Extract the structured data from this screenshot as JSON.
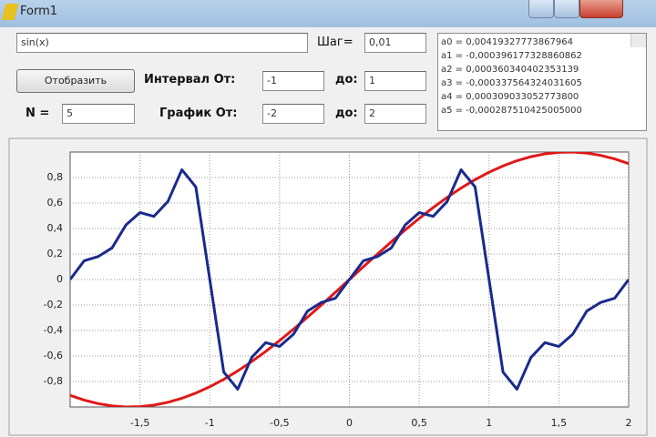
{
  "window": {
    "title": "Form1"
  },
  "form": {
    "function_input": "sin(x)",
    "step_label": "Шаг=",
    "step_input": "0,01",
    "button": "Отобразить",
    "interval_label": "Интервал От:",
    "interval_from": "-1",
    "interval_to_label": "до:",
    "interval_to": "1",
    "n_label": "N =",
    "n_input": "5",
    "graph_label": "График От:",
    "graph_from": "-2",
    "graph_to_label": "до:",
    "graph_to": "2",
    "coefficients": [
      "a0 = 0,00419327773867964",
      "a1 = -0,000396177328860862",
      "a2 = 0,000360340402353139",
      "a3 = -0,000337564324031605",
      "a4 = 0,000309033052773800",
      "a5 = -0,000287510425005000"
    ]
  },
  "chart": {
    "type": "line",
    "x": [
      -2,
      -1.9,
      -1.8,
      -1.7,
      -1.6,
      -1.5,
      -1.4,
      -1.3,
      -1.2,
      -1.1,
      -1,
      -0.9,
      -0.8,
      -0.7,
      -0.6,
      -0.5,
      -0.4,
      -0.3,
      -0.2,
      -0.1,
      0,
      0.1,
      0.2,
      0.3,
      0.4,
      0.5,
      0.6,
      0.7,
      0.8,
      0.9,
      1,
      1.1,
      1.2,
      1.3,
      1.4,
      1.5,
      1.6,
      1.7,
      1.8,
      1.9,
      2
    ],
    "series": [
      {
        "color": "#e01818",
        "values": [
          -0.9093,
          -0.9463,
          -0.9738,
          -0.9917,
          -0.9996,
          -0.9975,
          -0.9854,
          -0.9636,
          -0.932,
          -0.8912,
          -0.8415,
          -0.7833,
          -0.7174,
          -0.6442,
          -0.5646,
          -0.4794,
          -0.3894,
          -0.2955,
          -0.1987,
          -0.0998,
          0,
          0.0998,
          0.1987,
          0.2955,
          0.3894,
          0.4794,
          0.5646,
          0.6442,
          0.7174,
          0.7833,
          0.8415,
          0.8912,
          0.932,
          0.9636,
          0.9854,
          0.9975,
          0.9996,
          0.9917,
          0.9738,
          0.9463,
          0.9093
        ]
      },
      {
        "color": "#1a2a8c",
        "values": [
          0,
          0.1466,
          0.1796,
          0.2477,
          0.4287,
          0.5251,
          0.4953,
          0.6121,
          0.8608,
          0.726,
          0,
          -0.726,
          -0.8608,
          -0.6121,
          -0.4953,
          -0.5251,
          -0.4287,
          -0.2477,
          -0.1796,
          -0.1466,
          0,
          0.1466,
          0.1796,
          0.2477,
          0.4287,
          0.5251,
          0.4953,
          0.6121,
          0.8608,
          0.726,
          0,
          -0.726,
          -0.8608,
          -0.6121,
          -0.4953,
          -0.5251,
          -0.4287,
          -0.2477,
          -0.1796,
          -0.1466,
          0
        ]
      }
    ],
    "xlim": [
      -2,
      2
    ],
    "ylim": [
      -1,
      1
    ],
    "xticks": [
      {
        "value": -1.5,
        "label": "-1,5"
      },
      -1,
      {
        "value": -0.5,
        "label": "-0,5"
      },
      0,
      {
        "value": 0.5,
        "label": "0,5"
      },
      1,
      {
        "value": 1.5,
        "label": "1,5"
      },
      2
    ],
    "yticks": [
      {
        "value": -0.8,
        "label": "-0,8"
      },
      {
        "value": -0.6,
        "label": "-0,6"
      },
      {
        "value": -0.4,
        "label": "-0,4"
      },
      {
        "value": -0.2,
        "label": "-0,2"
      },
      0,
      {
        "value": 0.2,
        "label": "0,2"
      },
      {
        "value": 0.4,
        "label": "0,4"
      },
      {
        "value": 0.6,
        "label": "0,6"
      },
      {
        "value": 0.8,
        "label": "0,8"
      }
    ],
    "grid": true
  }
}
